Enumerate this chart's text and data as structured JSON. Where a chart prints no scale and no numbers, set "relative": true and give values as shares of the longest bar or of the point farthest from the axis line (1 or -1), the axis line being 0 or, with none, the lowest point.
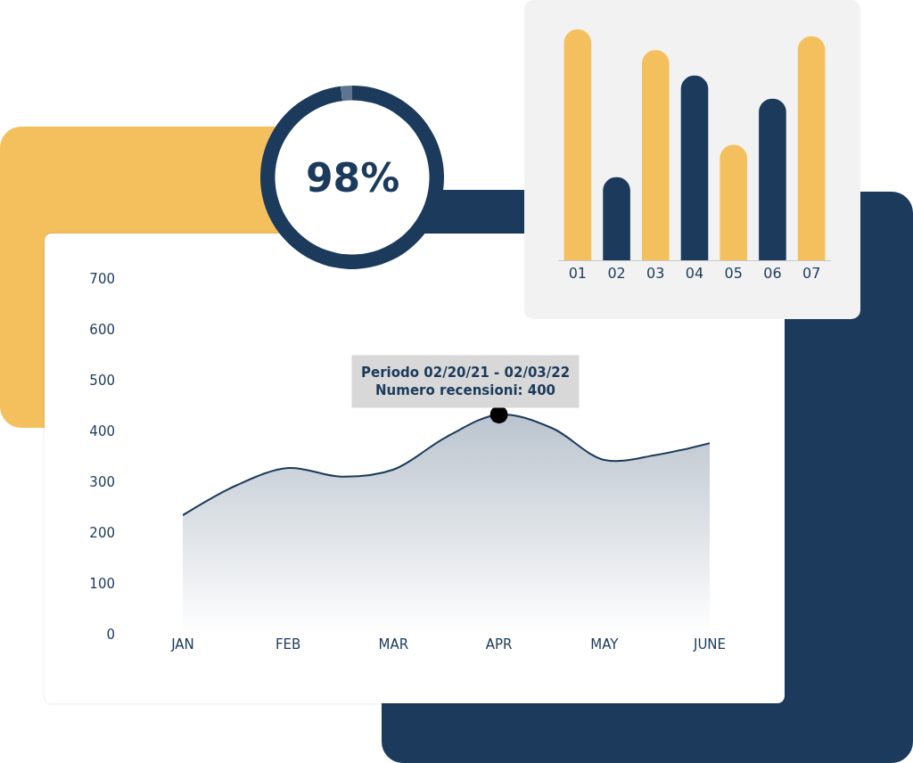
{
  "chart_data": [
    {
      "type": "area",
      "categories": [
        "JAN",
        null,
        "FEB",
        null,
        "MAR",
        null,
        "APR",
        null,
        "MAY",
        null,
        "JUNE"
      ],
      "ylim": [
        0,
        700
      ],
      "yticks": [
        0,
        100,
        200,
        300,
        400,
        500,
        600,
        700
      ],
      "series": [
        {
          "type": "area",
          "color": "#1b3a5c",
          "values": [
            235,
            293,
            328,
            311,
            325,
            389,
            433,
            407,
            344,
            354,
            377
          ]
        },
        {
          "type": "scatter",
          "x": [
            "APR"
          ],
          "color": "#000000",
          "values": [
            433
          ]
        }
      ],
      "annotations": [
        "Periodo 02/20/21 - 02/03/22",
        "Numero recensioni: 400"
      ]
    },
    {
      "type": "bar",
      "relative": true,
      "categories": [
        "01",
        "02",
        "03",
        "04",
        "05",
        "06",
        "07"
      ],
      "values": [
        1,
        0.36,
        0.91,
        0.8,
        0.5,
        0.7,
        0.97
      ],
      "colors": [
        "#f4c05e",
        "#1b3a5c",
        "#f4c05e",
        "#1b3a5c",
        "#f4c05e",
        "#1b3a5c",
        "#f4c05e"
      ]
    },
    {
      "type": "donut",
      "categories": [
        null,
        null
      ],
      "values": [
        98,
        2
      ],
      "colors": [
        "#1b3a5c",
        "#5e7591"
      ],
      "value_labels": [
        "98%",
        null
      ]
    }
  ]
}
